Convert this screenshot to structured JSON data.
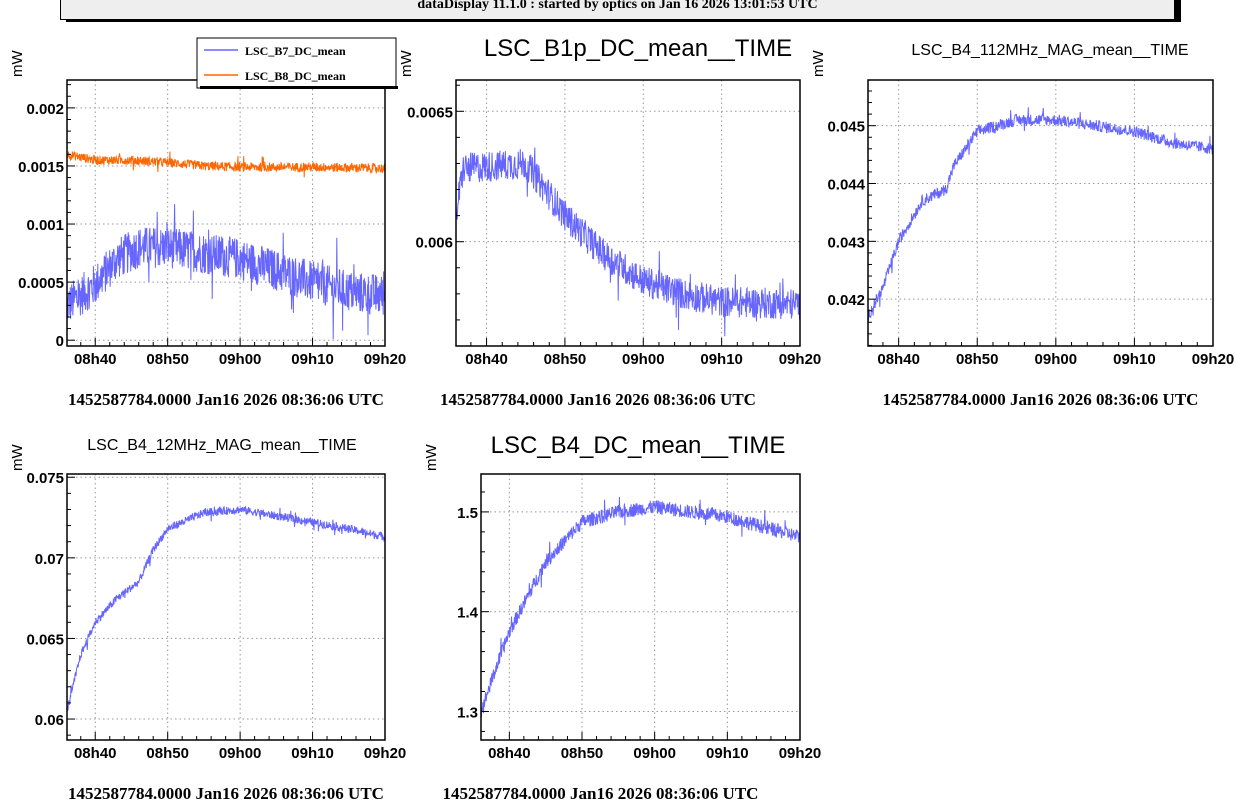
{
  "header": {
    "title": "dataDisplay 11.1.0 : started by optics on Jan 16 2026 13:01:53 UTC"
  },
  "colors": {
    "blue": "#6666ff",
    "orange": "#ff6600"
  },
  "x_axis": {
    "ticks": [
      40,
      50,
      60,
      70,
      80
    ],
    "tick_labels": [
      "08h40",
      "08h50",
      "09h00",
      "09h10",
      "09h20"
    ],
    "range_minutes_after_0800": [
      36.1,
      80
    ],
    "footer": "1452587784.0000 Jan16 2026 08:36:06 UTC"
  },
  "chart_data": [
    {
      "type": "line",
      "title": "",
      "ylabel": "mW",
      "ylim": [
        -5e-05,
        0.00224
      ],
      "yticks": [
        0,
        0.0005,
        0.001,
        0.0015,
        0.002
      ],
      "ytick_labels": [
        "0",
        "0.0005",
        "0.001",
        "0.0015",
        "0.002"
      ],
      "legend": {
        "placement": "top-right",
        "entries": [
          "LSC_B7_DC_mean",
          "LSC_B8_DC_mean"
        ]
      },
      "series": [
        {
          "name": "LSC_B7_DC_mean",
          "color": "#6666ff",
          "noise": 0.00018,
          "points": [
            [
              36.1,
              0.0003
            ],
            [
              40,
              0.00048
            ],
            [
              43,
              0.0007
            ],
            [
              46,
              0.0008
            ],
            [
              50,
              0.0008
            ],
            [
              55,
              0.00075
            ],
            [
              60,
              0.0007
            ],
            [
              65,
              0.0006
            ],
            [
              70,
              0.0005
            ],
            [
              75,
              0.00042
            ],
            [
              80,
              0.00038
            ]
          ]
        },
        {
          "name": "LSC_B8_DC_mean",
          "color": "#ff6600",
          "noise": 4e-05,
          "points": [
            [
              36.1,
              0.0016
            ],
            [
              40,
              0.00155
            ],
            [
              45,
              0.00155
            ],
            [
              50,
              0.00153
            ],
            [
              55,
              0.0015
            ],
            [
              60,
              0.00149
            ],
            [
              70,
              0.00149
            ],
            [
              80,
              0.00148
            ]
          ]
        }
      ]
    },
    {
      "type": "line",
      "title": "LSC_B1p_DC_mean__TIME",
      "ylabel": "mW",
      "ylim": [
        0.0056,
        0.00662
      ],
      "yticks": [
        0.006,
        0.0065
      ],
      "ytick_labels": [
        "0.006",
        "0.0065"
      ],
      "series": [
        {
          "name": "LSC_B1p_DC_mean",
          "color": "#6666ff",
          "noise": 6e-05,
          "points": [
            [
              36.1,
              0.0061
            ],
            [
              37,
              0.00628
            ],
            [
              45,
              0.0063
            ],
            [
              50,
              0.0061
            ],
            [
              55,
              0.00595
            ],
            [
              60,
              0.00585
            ],
            [
              65,
              0.0058
            ],
            [
              70,
              0.00577
            ],
            [
              80,
              0.00576
            ]
          ]
        }
      ]
    },
    {
      "type": "line",
      "title": "LSC_B4_112MHz_MAG_mean__TIME",
      "ylabel": "mW",
      "ylim": [
        0.04119,
        0.04579
      ],
      "yticks": [
        0.042,
        0.043,
        0.044,
        0.045
      ],
      "ytick_labels": [
        "0.042",
        "0.043",
        "0.044",
        "0.045"
      ],
      "series": [
        {
          "name": "LSC_B4_112MHz_MAG_mean",
          "color": "#6666ff",
          "noise": 0.0001,
          "points": [
            [
              36.1,
              0.0417
            ],
            [
              38,
              0.0422
            ],
            [
              40,
              0.043
            ],
            [
              43,
              0.0437
            ],
            [
              46,
              0.0439
            ],
            [
              47,
              0.0443
            ],
            [
              50,
              0.0449
            ],
            [
              55,
              0.0451
            ],
            [
              60,
              0.0451
            ],
            [
              65,
              0.045
            ],
            [
              70,
              0.0449
            ],
            [
              75,
              0.0447
            ],
            [
              80,
              0.0446
            ]
          ]
        }
      ]
    },
    {
      "type": "line",
      "title": "LSC_B4_12MHz_MAG_mean__TIME",
      "ylabel": "mW",
      "ylim": [
        0.0587,
        0.0752
      ],
      "yticks": [
        0.06,
        0.065,
        0.07,
        0.075
      ],
      "ytick_labels": [
        "0.06",
        "0.065",
        "0.07",
        "0.075"
      ],
      "series": [
        {
          "name": "LSC_B4_12MHz_MAG_mean",
          "color": "#6666ff",
          "noise": 0.00025,
          "points": [
            [
              36.1,
              0.0605
            ],
            [
              38,
              0.064
            ],
            [
              40,
              0.066
            ],
            [
              43,
              0.0675
            ],
            [
              46,
              0.0685
            ],
            [
              48,
              0.0705
            ],
            [
              50,
              0.0718
            ],
            [
              55,
              0.0728
            ],
            [
              60,
              0.073
            ],
            [
              65,
              0.0726
            ],
            [
              70,
              0.0722
            ],
            [
              75,
              0.0718
            ],
            [
              80,
              0.0713
            ]
          ]
        }
      ]
    },
    {
      "type": "line",
      "title": "LSC_B4_DC_mean__TIME",
      "ylabel": "mW",
      "ylim": [
        1.2714,
        1.538
      ],
      "yticks": [
        1.3,
        1.4,
        1.5
      ],
      "ytick_labels": [
        "1.3",
        "1.4",
        "1.5"
      ],
      "series": [
        {
          "name": "LSC_B4_DC_mean",
          "color": "#6666ff",
          "noise": 0.007,
          "points": [
            [
              36.1,
              1.3
            ],
            [
              38,
              1.34
            ],
            [
              40,
              1.38
            ],
            [
              45,
              1.45
            ],
            [
              50,
              1.49
            ],
            [
              55,
              1.5
            ],
            [
              60,
              1.505
            ],
            [
              65,
              1.5
            ],
            [
              70,
              1.495
            ],
            [
              75,
              1.485
            ],
            [
              80,
              1.475
            ]
          ]
        }
      ]
    }
  ]
}
